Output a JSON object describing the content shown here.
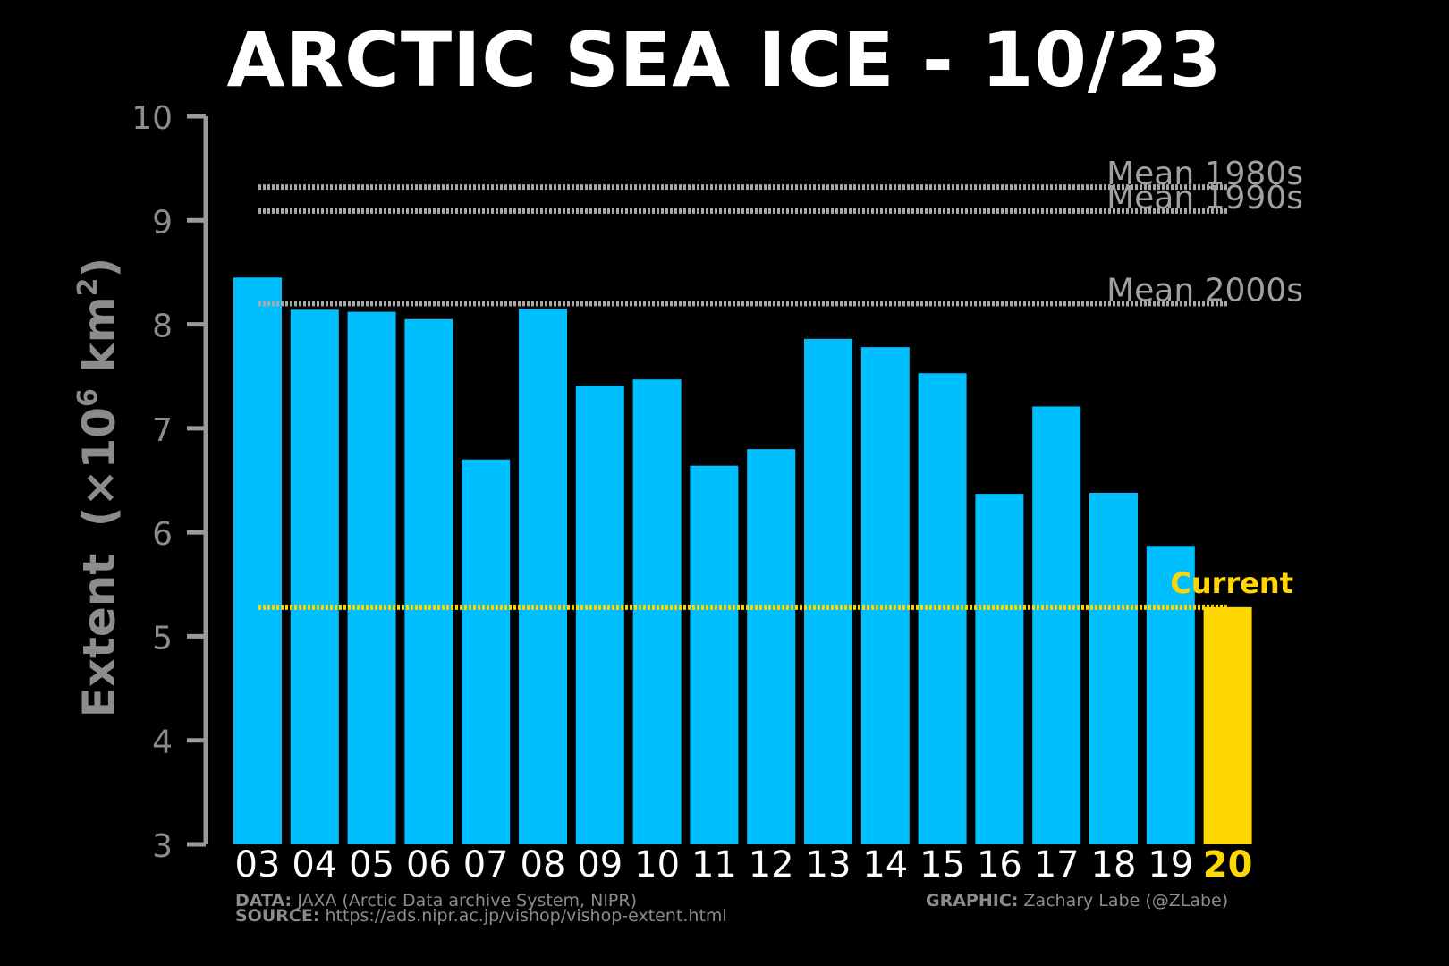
{
  "chart_data": {
    "type": "bar",
    "title": "ARCTIC SEA ICE - 10/23",
    "ylabel": "Extent",
    "ylabel_unit_prefix": "(×10",
    "ylabel_unit_exp": "6",
    "ylabel_unit_mid": " km",
    "ylabel_unit_exp2": "2",
    "ylabel_unit_suffix": ")",
    "ylim": [
      3,
      10
    ],
    "yticks": [
      3,
      4,
      5,
      6,
      7,
      8,
      9,
      10
    ],
    "categories": [
      "03",
      "04",
      "05",
      "06",
      "07",
      "08",
      "09",
      "10",
      "11",
      "12",
      "13",
      "14",
      "15",
      "16",
      "17",
      "18",
      "19",
      "20"
    ],
    "values": [
      8.45,
      8.14,
      8.12,
      8.05,
      6.7,
      8.15,
      7.41,
      7.47,
      6.64,
      6.8,
      7.86,
      7.78,
      7.53,
      6.37,
      7.21,
      6.38,
      5.87,
      5.28
    ],
    "bar_color": "#00BFFF",
    "highlight_color": "#FFD700",
    "highlight_index": 17,
    "reference_lines": [
      {
        "label": "Mean 1980s",
        "value": 9.32
      },
      {
        "label": "Mean 1990s",
        "value": 9.09
      },
      {
        "label": "Mean 2000s",
        "value": 8.2
      }
    ],
    "current_line": {
      "label": "Current",
      "value": 5.28
    },
    "grid": false
  },
  "footer": {
    "data_label": "DATA:",
    "data_text": "JAXA (Arctic Data archive System, NIPR)",
    "source_label": "SOURCE:",
    "source_text": "https://ads.nipr.ac.jp/vishop/vishop-extent.html",
    "graphic_label": "GRAPHIC:",
    "graphic_text": "Zachary Labe (@ZLabe)"
  }
}
